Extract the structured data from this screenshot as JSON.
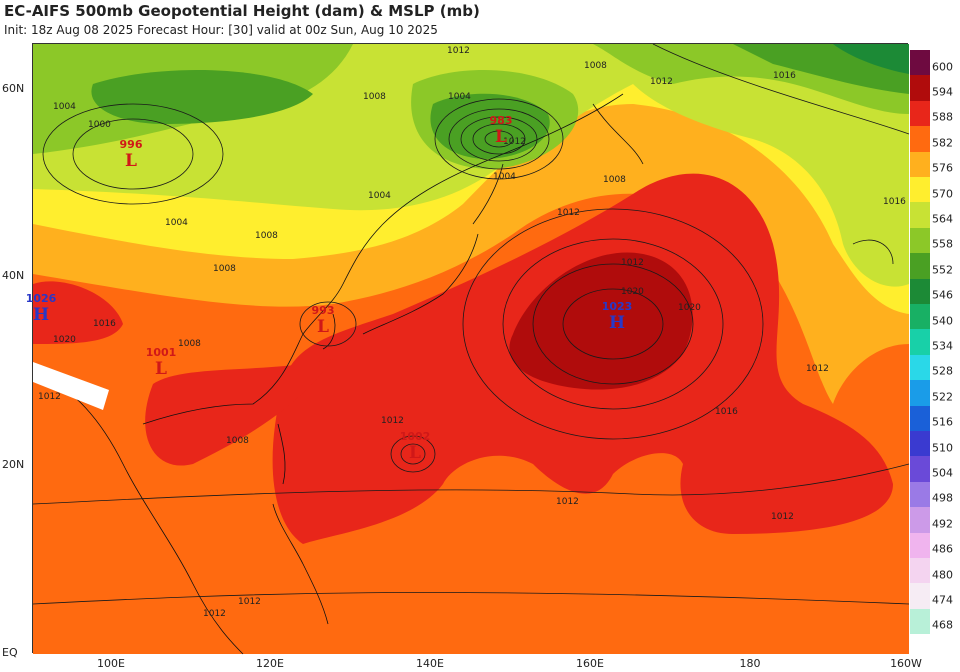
{
  "header": {
    "title": "EC-AIFS 500mb Geopotential Height (dam) & MSLP (mb)",
    "subtitle": "Init: 18z Aug 08 2025   Forecast Hour: [30]   valid at 00z Sun, Aug 10 2025"
  },
  "axes": {
    "lat_ticks": [
      "60N",
      "40N",
      "20N",
      "EQ"
    ],
    "lon_ticks": [
      "100E",
      "120E",
      "140E",
      "160E",
      "180",
      "160W"
    ]
  },
  "colorbar": {
    "levels": [
      "600",
      "594",
      "588",
      "582",
      "576",
      "570",
      "564",
      "558",
      "552",
      "546",
      "540",
      "534",
      "528",
      "522",
      "516",
      "510",
      "504",
      "498",
      "492",
      "486",
      "480",
      "474",
      "468"
    ],
    "colors": [
      "#6e0a40",
      "#b00c0c",
      "#e8261a",
      "#ff6a10",
      "#ffb01e",
      "#ffee2e",
      "#c8e234",
      "#8cc828",
      "#4aa023",
      "#1c8a36",
      "#18b064",
      "#18d0a8",
      "#2ad8e8",
      "#1a9ce8",
      "#1a60d8",
      "#3a3ad0",
      "#6a4ad8",
      "#9a7ae6",
      "#cc9ae8",
      "#f0b4ee",
      "#f4d4f0",
      "#f6ecf4",
      "#b8f0d8"
    ]
  },
  "pressure_centers": [
    {
      "type": "L",
      "value": "996",
      "color": "#d01818"
    },
    {
      "type": "L",
      "value": "983",
      "color": "#d01818"
    },
    {
      "type": "H",
      "value": "1026",
      "color": "#2838c8"
    },
    {
      "type": "L",
      "value": "993",
      "color": "#d01818"
    },
    {
      "type": "L",
      "value": "1001",
      "color": "#d01818"
    },
    {
      "type": "H",
      "value": "1023",
      "color": "#2838c8"
    },
    {
      "type": "L",
      "value": "1002",
      "color": "#d01818"
    }
  ],
  "isobar_labels": [
    "1012",
    "1012",
    "1008",
    "1016",
    "1004",
    "1000",
    "1004",
    "1008",
    "1004",
    "1008",
    "1004",
    "1008",
    "1012",
    "1004",
    "1012",
    "1020",
    "1020",
    "1016",
    "1012",
    "1012",
    "1012",
    "1008",
    "1016",
    "1008",
    "1008",
    "1012",
    "1020",
    "1016",
    "1012",
    "1012",
    "1012",
    "1012"
  ]
}
